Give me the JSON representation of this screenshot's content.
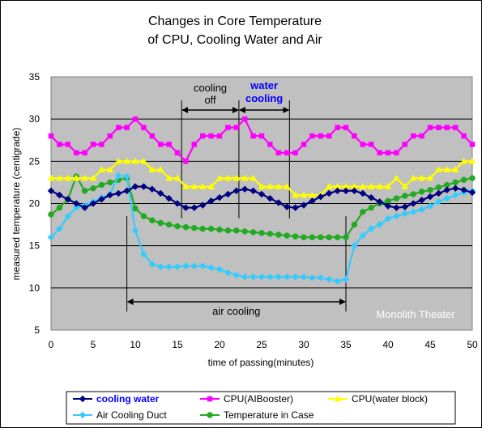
{
  "chart_data": {
    "type": "line",
    "title": [
      "Changes in Core Temperature",
      "of CPU, Cooling Water and Air"
    ],
    "xlabel": "time of passing(minutes)",
    "ylabel": "measured temperature (centigrade)",
    "xlim": [
      0,
      50
    ],
    "ylim": [
      5,
      35
    ],
    "xticks": [
      0,
      5,
      10,
      15,
      20,
      25,
      30,
      35,
      40,
      45,
      50
    ],
    "yticks": [
      5,
      10,
      15,
      20,
      25,
      30,
      35
    ],
    "grid": "horizontal",
    "legend_position": "bottom",
    "x": [
      0,
      1,
      2,
      3,
      4,
      5,
      6,
      7,
      8,
      9,
      10,
      11,
      12,
      13,
      14,
      15,
      16,
      17,
      18,
      19,
      20,
      21,
      22,
      23,
      24,
      25,
      26,
      27,
      28,
      29,
      30,
      31,
      32,
      33,
      34,
      35,
      36,
      37,
      38,
      39,
      40,
      41,
      42,
      43,
      44,
      45,
      46,
      47,
      48,
      49,
      50
    ],
    "series": [
      {
        "name": "cooling water",
        "color": "#000080",
        "marker": "diamond",
        "values": [
          21.5,
          21,
          20.5,
          20,
          19.5,
          20,
          20.5,
          21,
          21.2,
          21.5,
          22,
          22,
          21.7,
          21.2,
          20.6,
          20,
          19.5,
          19.5,
          19.8,
          20.3,
          20.7,
          21.1,
          21.5,
          21.7,
          21.5,
          21.1,
          20.6,
          20.1,
          19.6,
          19.5,
          19.8,
          20.3,
          20.8,
          21.2,
          21.5,
          21.5,
          21.5,
          21.2,
          20.7,
          20.2,
          19.7,
          19.5,
          19.6,
          20,
          20.4,
          20.8,
          21.2,
          21.6,
          21.8,
          21.6,
          21.3
        ]
      },
      {
        "name": "CPU(AIBooster)",
        "color": "#ff00ff",
        "marker": "square",
        "values": [
          28,
          27,
          27,
          26,
          26,
          27,
          27,
          28,
          29,
          29,
          30,
          29,
          28,
          27,
          27,
          26,
          25,
          27,
          28,
          28,
          28,
          29,
          29,
          30,
          28,
          28,
          27,
          26,
          26,
          26,
          27,
          28,
          28,
          28,
          29,
          29,
          28,
          27,
          27,
          26,
          26,
          26,
          27,
          28,
          28,
          29,
          29,
          29,
          29,
          28,
          27
        ]
      },
      {
        "name": "CPU(water block)",
        "color": "#ffff00",
        "marker": "triangle",
        "values": [
          23,
          23,
          23,
          23,
          23,
          23,
          24,
          24,
          25,
          25,
          25,
          25,
          24,
          24,
          23,
          23,
          22,
          22,
          22,
          22,
          23,
          23,
          23,
          23,
          23,
          22,
          22,
          22,
          22,
          21,
          21,
          21,
          21,
          22,
          22,
          22,
          22,
          22,
          22,
          22,
          22,
          23,
          22,
          23,
          23,
          23,
          24,
          24,
          24,
          25,
          25
        ]
      },
      {
        "name": "Air Cooling Duct",
        "color": "#33ccff",
        "marker": "diamond",
        "values": [
          16,
          17,
          18.5,
          19.5,
          19.8,
          20.2,
          20.7,
          21.1,
          23.3,
          23.2,
          16.8,
          14,
          12.8,
          12.5,
          12.5,
          12.5,
          12.6,
          12.6,
          12.6,
          12.4,
          12.2,
          11.8,
          11.5,
          11.3,
          11.3,
          11.3,
          11.3,
          11.3,
          11.3,
          11.3,
          11.3,
          11.2,
          11.2,
          11,
          10.8,
          11,
          15,
          16.2,
          17,
          17.5,
          18.2,
          18.5,
          18.8,
          19,
          19.3,
          19.7,
          20.2,
          20.6,
          21,
          21.3,
          21.5
        ]
      },
      {
        "name": "Temperature in Case",
        "color": "#22aa22",
        "marker": "circle",
        "values": [
          18.7,
          19.5,
          20.5,
          23.2,
          21.5,
          21.8,
          22.2,
          22.5,
          22.8,
          23,
          19.4,
          18.5,
          18,
          17.7,
          17.5,
          17.3,
          17.2,
          17.1,
          17,
          17,
          16.9,
          16.8,
          16.8,
          16.7,
          16.6,
          16.5,
          16.4,
          16.3,
          16.2,
          16.1,
          16,
          16,
          16,
          16,
          16,
          16,
          17.5,
          19,
          19.5,
          20,
          20.3,
          20.6,
          20.9,
          21.1,
          21.4,
          21.6,
          21.9,
          22.2,
          22.5,
          22.8,
          23
        ]
      }
    ],
    "annotations": {
      "cooling_off": {
        "label": [
          "cooling",
          "off"
        ],
        "range": [
          15.5,
          22.3
        ]
      },
      "water_cooling": {
        "label": [
          "water",
          "cooling"
        ],
        "range": [
          22.3,
          28.3
        ]
      },
      "air_cooling": {
        "label": "air cooling",
        "range": [
          9,
          35
        ]
      }
    },
    "watermark": "Monolith Theater"
  }
}
